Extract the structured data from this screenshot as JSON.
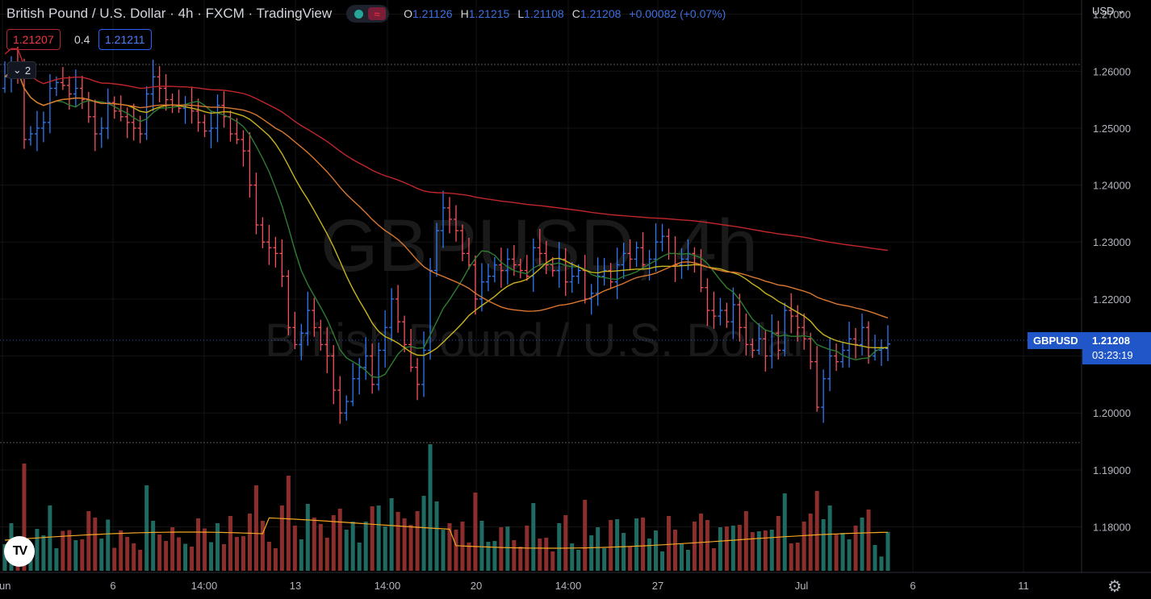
{
  "header": {
    "symbol_description": "British Pound / U.S. Dollar · 4h · FXCM · TradingView",
    "ohlc": {
      "o_label": "O",
      "o_value": "1.21126",
      "h_label": "H",
      "h_value": "1.21215",
      "l_label": "L",
      "l_value": "1.21108",
      "c_label": "C",
      "c_value": "1.21208",
      "change": "+0.00082 (+0.07%)"
    },
    "status_icon": "market-open-dot",
    "wave_icon": "≈"
  },
  "quote": {
    "sell_price": "1.21207",
    "spread": "0.4",
    "buy_price": "1.21211"
  },
  "indicator_toggle": {
    "label": "2"
  },
  "price_scale": {
    "currency": "USD",
    "ticks": [
      "1.27000",
      "1.26000",
      "1.25000",
      "1.24000",
      "1.23000",
      "1.22000",
      "1.21000",
      "1.20000",
      "1.19000",
      "1.18000"
    ]
  },
  "time_scale": {
    "ticks": [
      "Jun",
      "6",
      "14:00",
      "13",
      "14:00",
      "20",
      "14:00",
      "27",
      "Jul",
      "6",
      "11"
    ]
  },
  "last_price": {
    "symbol": "GBPUSD",
    "price": "1.21208",
    "countdown": "03:23:19"
  },
  "watermark": {
    "line1": "GBPUSD, 4h",
    "line2": "British Pound / U.S. Dollar"
  },
  "colors": {
    "background": "#000000",
    "up": "#3179f5",
    "down": "#f7525f",
    "vol_up": "#1f6b62",
    "vol_down": "#8c2f2c",
    "ma_green": "#2e7d32",
    "ma_yellow": "#c9b31e",
    "ma_orange": "#d9772f",
    "ma_red": "#c0262b",
    "volume_ma": "#f5a623"
  },
  "chart_data": {
    "type": "ohlc-bars",
    "symbol": "GBPUSD",
    "interval": "4h",
    "ylim": [
      1.172,
      1.2725
    ],
    "closes": [
      1.259,
      1.261,
      1.26,
      1.248,
      1.249,
      1.25,
      1.251,
      1.257,
      1.258,
      1.2575,
      1.256,
      1.257,
      1.255,
      1.252,
      1.249,
      1.25,
      1.2545,
      1.253,
      1.252,
      1.251,
      1.25,
      1.249,
      1.256,
      1.259,
      1.257,
      1.255,
      1.254,
      1.2535,
      1.254,
      1.253,
      1.251,
      1.2495,
      1.25,
      1.254,
      1.252,
      1.249,
      1.248,
      1.246,
      1.24,
      1.233,
      1.23,
      1.229,
      1.228,
      1.224,
      1.215,
      1.212,
      1.214,
      1.218,
      1.215,
      1.212,
      1.21,
      1.204,
      1.2,
      1.202,
      1.206,
      1.208,
      1.21,
      1.205,
      1.211,
      1.215,
      1.22,
      1.216,
      1.212,
      1.208,
      1.205,
      1.211,
      1.225,
      1.232,
      1.236,
      1.234,
      1.232,
      1.228,
      1.226,
      1.22,
      1.223,
      1.224,
      1.226,
      1.225,
      1.227,
      1.226,
      1.225,
      1.224,
      1.229,
      1.228,
      1.226,
      1.225,
      1.227,
      1.223,
      1.224,
      1.225,
      1.22,
      1.221,
      1.224,
      1.225,
      1.223,
      1.226,
      1.228,
      1.227,
      1.229,
      1.226,
      1.227,
      1.23,
      1.231,
      1.228,
      1.226,
      1.227,
      1.228,
      1.226,
      1.222,
      1.218,
      1.217,
      1.218,
      1.216,
      1.219,
      1.215,
      1.212,
      1.211,
      1.213,
      1.21,
      1.214,
      1.211,
      1.218,
      1.217,
      1.215,
      1.213,
      1.209,
      1.201,
      1.206,
      1.21,
      1.209,
      1.211,
      1.213,
      1.212,
      1.215,
      1.21,
      1.211,
      1.2113,
      1.2121
    ],
    "last_close": 1.21208
  }
}
